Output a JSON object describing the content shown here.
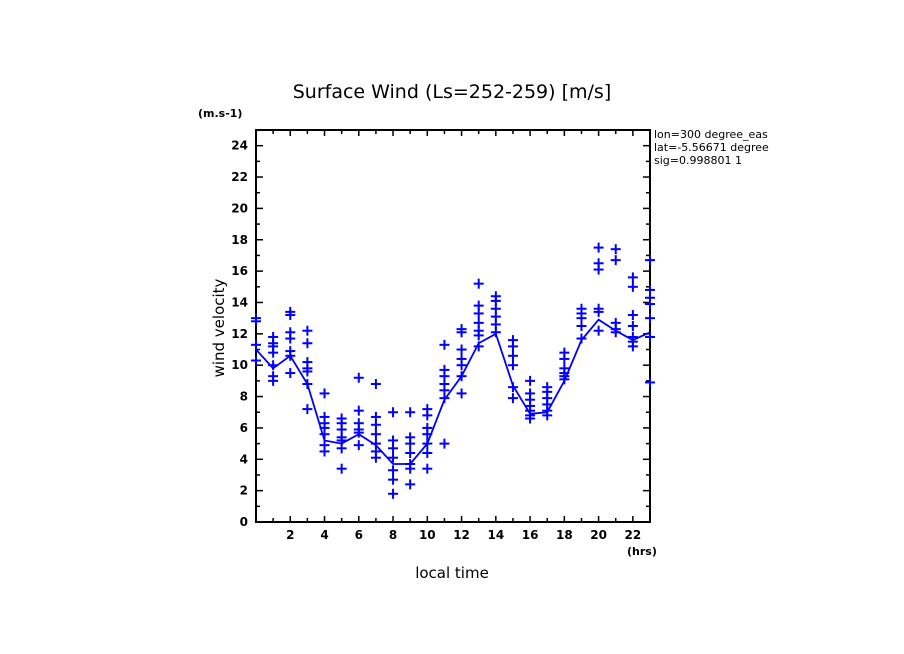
{
  "chart_data": {
    "type": "scatter",
    "title": "Surface Wind  (Ls=252-259) [m/s]",
    "xlabel": "local time",
    "ylabel": "wind velocity",
    "x_unit": "(hrs)",
    "y_unit": "(m.s-1)",
    "xlim": [
      0,
      23
    ],
    "ylim": [
      0,
      25
    ],
    "x_ticks": [
      2,
      4,
      6,
      8,
      10,
      12,
      14,
      16,
      18,
      20,
      22
    ],
    "y_ticks": [
      0,
      2,
      4,
      6,
      8,
      10,
      12,
      14,
      16,
      18,
      20,
      22,
      24
    ],
    "grid": false,
    "info_lines": [
      "lon=300 degree_eas",
      "lat=-5.56671 degree",
      "sig=0.998801 1"
    ],
    "color": "#0000ff",
    "series": [
      {
        "name": "mean",
        "style": "line",
        "x": [
          0,
          1,
          2,
          3,
          4,
          5,
          6,
          7,
          8,
          9,
          10,
          11,
          12,
          13,
          14,
          15,
          16,
          17,
          18,
          19,
          20,
          21,
          22,
          23
        ],
        "y": [
          11.0,
          9.8,
          10.6,
          8.8,
          5.2,
          5.0,
          5.6,
          4.9,
          3.7,
          3.7,
          5.0,
          7.8,
          9.3,
          11.4,
          12.0,
          8.7,
          6.9,
          7.0,
          9.0,
          11.6,
          12.9,
          12.2,
          11.6,
          12.1
        ]
      },
      {
        "name": "samples",
        "style": "plus-markers",
        "points": [
          [
            0,
            13.0
          ],
          [
            0,
            12.8
          ],
          [
            0,
            11.3
          ],
          [
            0,
            10.3
          ],
          [
            1,
            11.8
          ],
          [
            1,
            11.4
          ],
          [
            1,
            11.2
          ],
          [
            1,
            10.8
          ],
          [
            1,
            10.0
          ],
          [
            1,
            9.3
          ],
          [
            1,
            9.0
          ],
          [
            2,
            13.4
          ],
          [
            2,
            13.2
          ],
          [
            2,
            12.1
          ],
          [
            2,
            11.7
          ],
          [
            2,
            10.9
          ],
          [
            2,
            10.6
          ],
          [
            2,
            9.5
          ],
          [
            3,
            12.2
          ],
          [
            3,
            11.4
          ],
          [
            3,
            10.2
          ],
          [
            3,
            9.8
          ],
          [
            3,
            9.6
          ],
          [
            3,
            8.8
          ],
          [
            3,
            7.2
          ],
          [
            4,
            8.2
          ],
          [
            4,
            6.7
          ],
          [
            4,
            6.3
          ],
          [
            4,
            6.0
          ],
          [
            4,
            5.6
          ],
          [
            4,
            4.9
          ],
          [
            4,
            4.5
          ],
          [
            5,
            6.6
          ],
          [
            5,
            6.3
          ],
          [
            5,
            5.9
          ],
          [
            5,
            5.4
          ],
          [
            5,
            5.2
          ],
          [
            5,
            4.7
          ],
          [
            5,
            3.4
          ],
          [
            6,
            9.2
          ],
          [
            6,
            7.1
          ],
          [
            6,
            6.3
          ],
          [
            6,
            5.9
          ],
          [
            6,
            5.7
          ],
          [
            6,
            4.9
          ],
          [
            7,
            8.8
          ],
          [
            7,
            6.7
          ],
          [
            7,
            6.2
          ],
          [
            7,
            5.6
          ],
          [
            7,
            5.0
          ],
          [
            7,
            4.5
          ],
          [
            7,
            4.1
          ],
          [
            8,
            7.0
          ],
          [
            8,
            5.2
          ],
          [
            8,
            4.7
          ],
          [
            8,
            4.1
          ],
          [
            8,
            3.3
          ],
          [
            8,
            2.7
          ],
          [
            8,
            1.8
          ],
          [
            9,
            7.0
          ],
          [
            9,
            5.4
          ],
          [
            9,
            5.0
          ],
          [
            9,
            4.4
          ],
          [
            9,
            3.7
          ],
          [
            9,
            3.4
          ],
          [
            9,
            2.4
          ],
          [
            10,
            7.2
          ],
          [
            10,
            6.8
          ],
          [
            10,
            6.0
          ],
          [
            10,
            5.6
          ],
          [
            10,
            5.0
          ],
          [
            10,
            4.4
          ],
          [
            10,
            3.4
          ],
          [
            11,
            11.3
          ],
          [
            11,
            9.7
          ],
          [
            11,
            9.3
          ],
          [
            11,
            8.8
          ],
          [
            11,
            8.4
          ],
          [
            11,
            7.9
          ],
          [
            11,
            5.0
          ],
          [
            12,
            12.3
          ],
          [
            12,
            12.1
          ],
          [
            12,
            11.0
          ],
          [
            12,
            10.4
          ],
          [
            12,
            10.0
          ],
          [
            12,
            9.3
          ],
          [
            12,
            8.2
          ],
          [
            13,
            15.2
          ],
          [
            13,
            13.8
          ],
          [
            13,
            13.3
          ],
          [
            13,
            12.7
          ],
          [
            13,
            12.2
          ],
          [
            13,
            11.9
          ],
          [
            13,
            11.2
          ],
          [
            14,
            14.4
          ],
          [
            14,
            14.1
          ],
          [
            14,
            13.6
          ],
          [
            14,
            13.1
          ],
          [
            14,
            12.6
          ],
          [
            14,
            12.1
          ],
          [
            15,
            11.6
          ],
          [
            15,
            11.2
          ],
          [
            15,
            10.6
          ],
          [
            15,
            10.0
          ],
          [
            15,
            8.6
          ],
          [
            15,
            7.9
          ],
          [
            16,
            9.0
          ],
          [
            16,
            8.2
          ],
          [
            16,
            7.8
          ],
          [
            16,
            7.4
          ],
          [
            16,
            7.1
          ],
          [
            16,
            6.8
          ],
          [
            16,
            6.6
          ],
          [
            17,
            8.6
          ],
          [
            17,
            8.3
          ],
          [
            17,
            7.9
          ],
          [
            17,
            7.5
          ],
          [
            17,
            7.1
          ],
          [
            17,
            6.8
          ],
          [
            18,
            10.8
          ],
          [
            18,
            10.4
          ],
          [
            18,
            9.8
          ],
          [
            18,
            9.5
          ],
          [
            18,
            9.3
          ],
          [
            18,
            9.1
          ],
          [
            19,
            13.6
          ],
          [
            19,
            13.3
          ],
          [
            19,
            13.0
          ],
          [
            19,
            12.5
          ],
          [
            19,
            11.7
          ],
          [
            20,
            17.5
          ],
          [
            20,
            16.5
          ],
          [
            20,
            16.1
          ],
          [
            20,
            13.6
          ],
          [
            20,
            13.4
          ],
          [
            20,
            12.2
          ],
          [
            21,
            17.4
          ],
          [
            21,
            16.7
          ],
          [
            21,
            12.7
          ],
          [
            21,
            12.3
          ],
          [
            21,
            12.1
          ],
          [
            22,
            15.6
          ],
          [
            22,
            15.0
          ],
          [
            22,
            13.2
          ],
          [
            22,
            12.5
          ],
          [
            22,
            11.8
          ],
          [
            22,
            11.5
          ],
          [
            22,
            11.2
          ],
          [
            23,
            16.7
          ],
          [
            23,
            14.8
          ],
          [
            23,
            14.3
          ],
          [
            23,
            13.9
          ],
          [
            23,
            13.0
          ],
          [
            23,
            11.8
          ],
          [
            23,
            8.9
          ]
        ]
      }
    ]
  }
}
